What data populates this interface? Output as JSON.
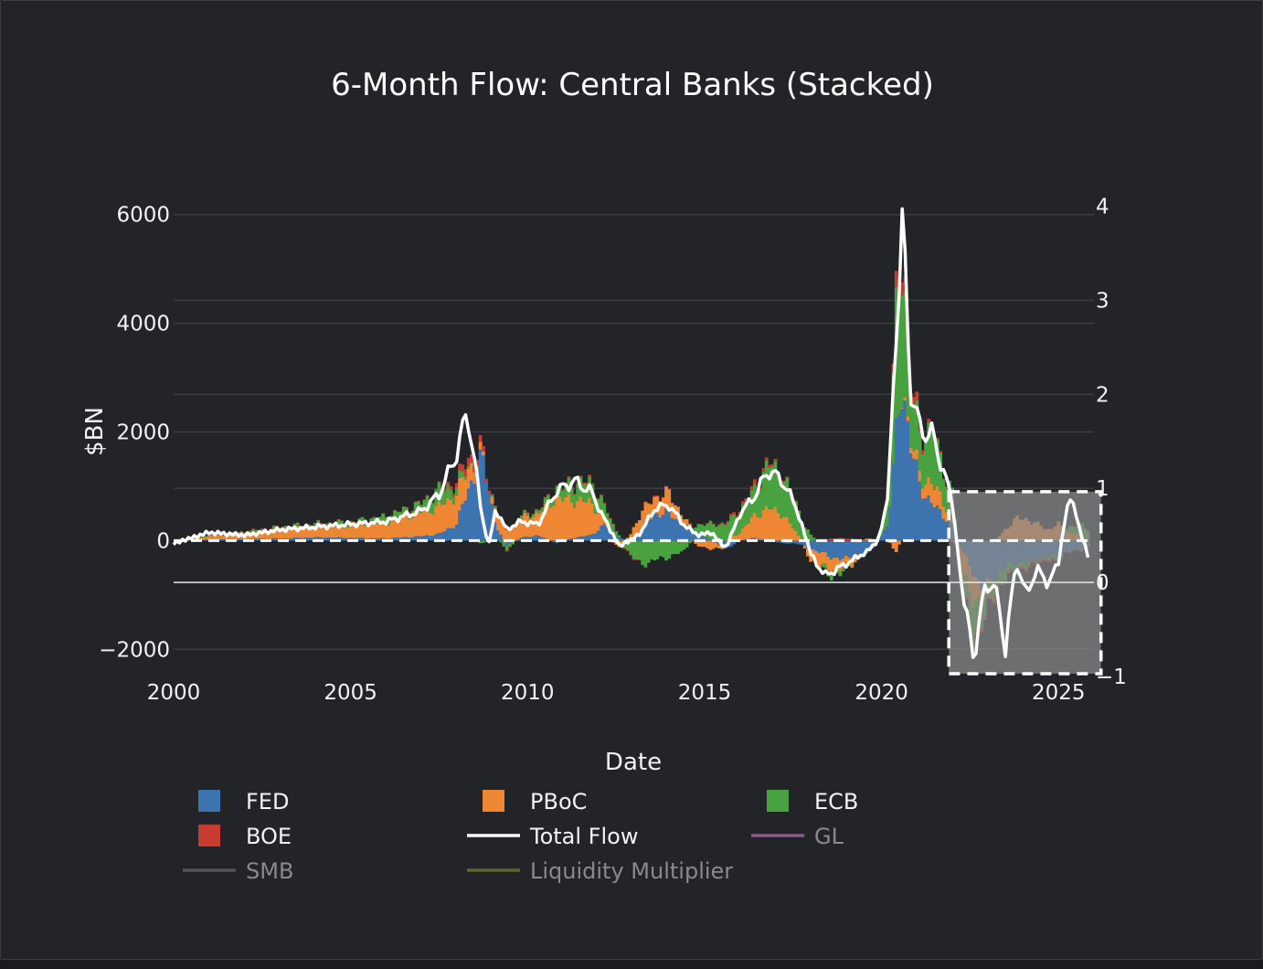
{
  "colors": {
    "background": "#222428",
    "grid": "#3a3d44",
    "fed": "#3d74b0",
    "pboc": "#ee8733",
    "ecb": "#48a23f",
    "boe": "#c83a32",
    "total_flow": "#ffffff",
    "gl": "#8a5a8c",
    "smb": "#555555",
    "liquidity_multiplier": "#5e6633",
    "dimmed_text": "#8a8a8a",
    "highlight_box": "#8a8a8a"
  },
  "chart_data": {
    "type": "bar",
    "title": "6-Month Flow: Central Banks (Stacked)",
    "xlabel": "Date",
    "ylabel": "$BN",
    "xlim": [
      2000,
      2026
    ],
    "ylim": [
      -2500,
      6500
    ],
    "y2lim": [
      -1,
      4.2
    ],
    "x_ticks": [
      "2000",
      "2005",
      "2010",
      "2015",
      "2020",
      "2025"
    ],
    "y_ticks": [
      "6000",
      "4000",
      "2000",
      "0",
      "−2000"
    ],
    "y2_ticks": [
      "4",
      "3",
      "2",
      "1",
      "0",
      "−1"
    ],
    "bar_mode": "relative",
    "grid": true,
    "legend_position": "bottom",
    "anchors": {
      "year": [
        2000,
        2001,
        2002,
        2003,
        2004,
        2005,
        2006,
        2007,
        2007.5,
        2008,
        2008.3,
        2008.7,
        2008.9,
        2009.1,
        2009.4,
        2009.8,
        2010.3,
        2010.8,
        2011.3,
        2011.8,
        2012.2,
        2012.6,
        2012.9,
        2013.2,
        2013.6,
        2014.0,
        2014.4,
        2014.8,
        2015.2,
        2015.6,
        2016.0,
        2016.4,
        2016.8,
        2017.2,
        2017.6,
        2018.0,
        2018.4,
        2018.8,
        2019.2,
        2019.6,
        2019.9,
        2020.2,
        2020.4,
        2020.6,
        2020.8,
        2021.1,
        2021.4,
        2021.7,
        2022.0,
        2022.3,
        2022.6,
        2022.9,
        2023.2,
        2023.5,
        2023.8,
        2024.1,
        2024.4,
        2024.7,
        2025.0,
        2025.3,
        2025.6,
        2025.85
      ],
      "fed": [
        0,
        20,
        30,
        40,
        60,
        50,
        40,
        80,
        120,
        300,
        900,
        1500,
        1000,
        300,
        -100,
        50,
        100,
        -50,
        50,
        100,
        300,
        50,
        0,
        200,
        500,
        500,
        300,
        150,
        0,
        -150,
        0,
        50,
        0,
        -50,
        -50,
        -150,
        -250,
        -350,
        -300,
        -250,
        0,
        300,
        1800,
        3000,
        1800,
        1000,
        700,
        500,
        300,
        -200,
        -600,
        -900,
        -700,
        -500,
        -400,
        -400,
        -350,
        -300,
        -250,
        -200,
        -150,
        -150
      ],
      "pboc": [
        0,
        60,
        100,
        160,
        200,
        220,
        300,
        450,
        500,
        550,
        400,
        100,
        -50,
        300,
        200,
        350,
        400,
        800,
        700,
        600,
        100,
        -150,
        100,
        300,
        300,
        350,
        150,
        -100,
        -150,
        0,
        150,
        400,
        600,
        500,
        150,
        -200,
        -250,
        -200,
        -100,
        50,
        0,
        0,
        -200,
        50,
        100,
        200,
        350,
        300,
        100,
        -400,
        -500,
        -100,
        0,
        200,
        400,
        400,
        300,
        200,
        300,
        150,
        100,
        0
      ],
      "ecb": [
        0,
        20,
        30,
        50,
        50,
        70,
        100,
        150,
        300,
        150,
        50,
        -50,
        0,
        50,
        -100,
        50,
        50,
        150,
        300,
        350,
        200,
        50,
        -250,
        -450,
        -350,
        -300,
        -200,
        150,
        300,
        300,
        400,
        450,
        800,
        700,
        500,
        100,
        -100,
        -100,
        0,
        0,
        0,
        500,
        2000,
        2500,
        900,
        700,
        1000,
        600,
        500,
        -400,
        -600,
        -400,
        -200,
        -200,
        -100,
        -100,
        0,
        -50,
        -100,
        100,
        200,
        200
      ],
      "boe": [
        0,
        0,
        5,
        5,
        5,
        5,
        5,
        10,
        20,
        80,
        150,
        100,
        50,
        0,
        -20,
        0,
        10,
        20,
        20,
        30,
        20,
        0,
        -20,
        0,
        20,
        10,
        0,
        0,
        10,
        20,
        50,
        80,
        50,
        20,
        10,
        0,
        20,
        50,
        30,
        0,
        0,
        50,
        250,
        300,
        200,
        100,
        50,
        20,
        -20,
        -60,
        -80,
        -80,
        -50,
        -50,
        -50,
        -50,
        -40,
        -40,
        -30,
        -20,
        -20,
        -20
      ],
      "total": [
        -50,
        150,
        100,
        200,
        250,
        300,
        350,
        550,
        850,
        1600,
        2400,
        500,
        -100,
        600,
        200,
        350,
        300,
        900,
        1100,
        900,
        350,
        -100,
        0,
        150,
        600,
        650,
        300,
        100,
        150,
        -150,
        500,
        800,
        1300,
        1100,
        600,
        -250,
        -650,
        -500,
        -350,
        -200,
        0,
        850,
        3850,
        5900,
        2900,
        2000,
        2000,
        1400,
        700,
        -1000,
        -2150,
        -900,
        -800,
        -1950,
        -400,
        -1000,
        -500,
        -800,
        -400,
        900,
        200,
        -300
      ]
    },
    "highlight_region": {
      "x": [
        2021.9,
        2026.2
      ],
      "y": [
        -2450,
        900
      ]
    },
    "legend": [
      {
        "name": "FED",
        "kind": "box",
        "active": true
      },
      {
        "name": "PBoC",
        "kind": "box",
        "active": true
      },
      {
        "name": "ECB",
        "kind": "box",
        "active": true
      },
      {
        "name": "BOE",
        "kind": "box",
        "active": true
      },
      {
        "name": "Total Flow",
        "kind": "line",
        "active": true
      },
      {
        "name": "GL",
        "kind": "line",
        "active": false
      },
      {
        "name": "SMB",
        "kind": "line",
        "active": false
      },
      {
        "name": "Liquidity Multiplier",
        "kind": "line",
        "active": false
      }
    ]
  }
}
